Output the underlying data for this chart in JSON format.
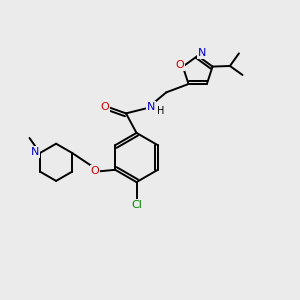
{
  "bg_color": "#ebebeb",
  "atom_colors": {
    "C": "#000000",
    "N": "#0000cc",
    "O": "#cc0000",
    "Cl": "#008800",
    "H": "#000000"
  },
  "bond_color": "#000000",
  "bond_width": 1.4,
  "figsize": [
    3.0,
    3.0
  ],
  "dpi": 100
}
